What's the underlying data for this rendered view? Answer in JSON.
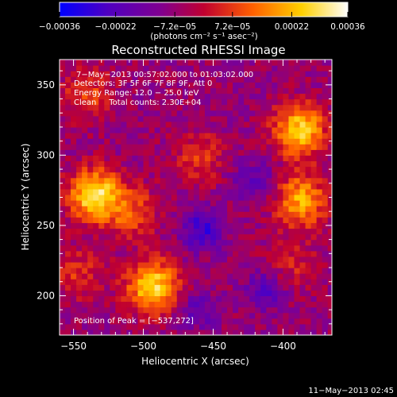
{
  "chart_data": {
    "type": "heatmap",
    "title": "Reconstructed RHESSI Image",
    "xlabel": "Heliocentric X (arcsec)",
    "ylabel": "Heliocentric Y (arcsec)",
    "xlim": [
      -560,
      -365
    ],
    "ylim": [
      172,
      368
    ],
    "xticks": [
      -550,
      -500,
      -450,
      -400
    ],
    "xtick_labels": [
      "−550",
      "−500",
      "−450",
      "−400"
    ],
    "yticks": [
      200,
      250,
      300,
      350
    ],
    "ytick_labels": [
      "200",
      "250",
      "300",
      "350"
    ],
    "colorbar": {
      "range": [
        -0.00036,
        0.00036
      ],
      "ticks": [
        -0.00036,
        -0.00022,
        -7.2e-05,
        7.2e-05,
        0.00022,
        0.00036
      ],
      "tick_labels": [
        "−0.00036",
        "−0.00022",
        "−7.2e−05",
        "7.2e−05",
        "0.00022",
        "0.00036"
      ],
      "units_label": "(photons cm⁻² s⁻¹ asec⁻²)",
      "colors": [
        "#0000ff",
        "#5000c0",
        "#800090",
        "#c00030",
        "#ff6000",
        "#ffd000",
        "#ffffff"
      ]
    },
    "annotations": [
      "7−May−2013 00:57:02.000 to 01:03:02.000",
      "Detectors: 3F 5F 6F 7F 8F 9F, Att 0",
      "Energy Range: 12.0 − 25.0 keV",
      "Clean     Total counts: 2.30E+04",
      "Position of Peak = [−537,272]"
    ],
    "sources": [
      {
        "x": -535,
        "y": 272,
        "intensity": 0.00036
      },
      {
        "x": -493,
        "y": 207,
        "intensity": 0.00034
      },
      {
        "x": -388,
        "y": 318,
        "intensity": 0.00033
      },
      {
        "x": -387,
        "y": 268,
        "intensity": 0.00027
      },
      {
        "x": -508,
        "y": 260,
        "intensity": 0.00016
      },
      {
        "x": -460,
        "y": 298,
        "intensity": 0.00013
      },
      {
        "x": -540,
        "y": 344,
        "intensity": 0.00014
      },
      {
        "x": -548,
        "y": 216,
        "intensity": 0.00012
      },
      {
        "x": -395,
        "y": 222,
        "intensity": 0.0001
      },
      {
        "x": -458,
        "y": 247,
        "intensity": -0.0002
      },
      {
        "x": -420,
        "y": 282,
        "intensity": -0.00014
      },
      {
        "x": -412,
        "y": 205,
        "intensity": -0.00016
      },
      {
        "x": -462,
        "y": 190,
        "intensity": -0.00012
      }
    ],
    "peak_position": [
      -537,
      272
    ],
    "grid": false
  },
  "footer": {
    "timestamp": "11−May−2013 02:45"
  }
}
